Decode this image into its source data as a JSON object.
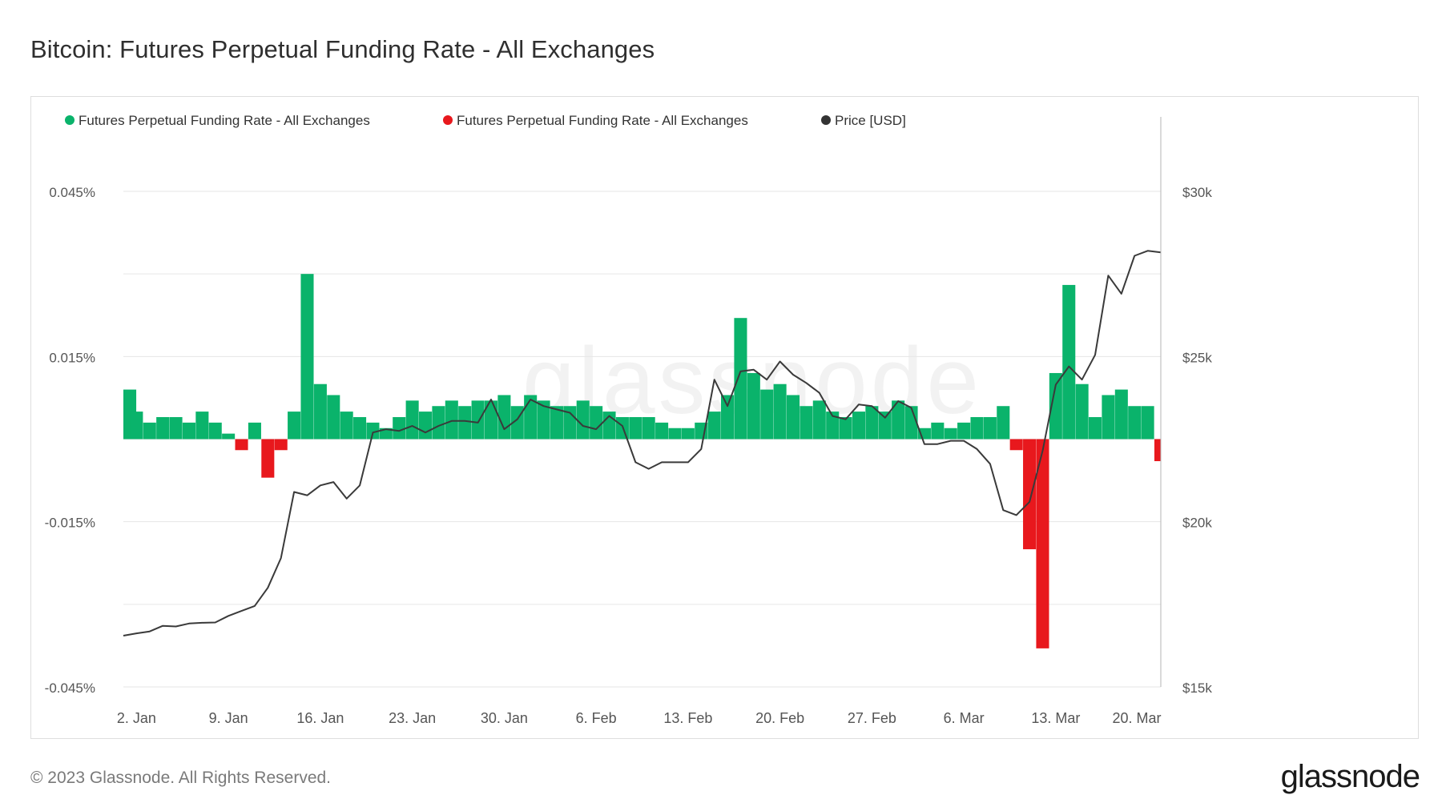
{
  "title": "Bitcoin: Futures Perpetual Funding Rate - All Exchanges",
  "footer": "© 2023 Glassnode. All Rights Reserved.",
  "brand": "glassnode",
  "watermark": "glassnode",
  "colors": {
    "positive": "#0ab36b",
    "negative": "#e8181d",
    "price": "#3a3a3a",
    "grid": "#e6e6e6",
    "axis_text": "#555555"
  },
  "chart_data": {
    "type": "bar",
    "legend_placement": "top-left",
    "grid": true,
    "legend": [
      {
        "name": "Futures Perpetual Funding Rate - All Exchanges",
        "color": "#0ab36b"
      },
      {
        "name": "Futures Perpetual Funding Rate - All Exchanges",
        "color": "#e8181d"
      },
      {
        "name": "Price [USD]",
        "color": "#333333"
      }
    ],
    "x_range": [
      "2023-01-01",
      "2023-03-21"
    ],
    "x_ticks": [
      {
        "date": "2023-01-02",
        "label": "2. Jan"
      },
      {
        "date": "2023-01-09",
        "label": "9. Jan"
      },
      {
        "date": "2023-01-16",
        "label": "16. Jan"
      },
      {
        "date": "2023-01-23",
        "label": "23. Jan"
      },
      {
        "date": "2023-01-30",
        "label": "30. Jan"
      },
      {
        "date": "2023-02-06",
        "label": "6. Feb"
      },
      {
        "date": "2023-02-13",
        "label": "13. Feb"
      },
      {
        "date": "2023-02-20",
        "label": "20. Feb"
      },
      {
        "date": "2023-02-27",
        "label": "27. Feb"
      },
      {
        "date": "2023-03-06",
        "label": "6. Mar"
      },
      {
        "date": "2023-03-13",
        "label": "13. Mar"
      },
      {
        "date": "2023-03-20",
        "label": "20. Mar"
      }
    ],
    "y_left": {
      "ticks": [
        0.045,
        0.015,
        -0.015,
        -0.045
      ],
      "labels": [
        "0.045%",
        "0.015%",
        "-0.015%",
        "-0.045%"
      ],
      "range": [
        -0.045,
        0.045
      ]
    },
    "y_right": {
      "ticks": [
        30000,
        25000,
        20000,
        15000
      ],
      "labels": [
        "$30k",
        "$25k",
        "$20k",
        "$15k"
      ],
      "range": [
        15000,
        30000
      ]
    },
    "funding_rate_series": {
      "name": "Futures Perpetual Funding Rate - All Exchanges",
      "unit": "%",
      "points": [
        [
          "2023-01-01",
          0.009
        ],
        [
          "2023-01-02",
          0.005
        ],
        [
          "2023-01-03",
          0.003
        ],
        [
          "2023-01-04",
          0.004
        ],
        [
          "2023-01-05",
          0.004
        ],
        [
          "2023-01-06",
          0.003
        ],
        [
          "2023-01-07",
          0.005
        ],
        [
          "2023-01-08",
          0.003
        ],
        [
          "2023-01-09",
          0.001
        ],
        [
          "2023-01-10",
          -0.002
        ],
        [
          "2023-01-11",
          0.003
        ],
        [
          "2023-01-12",
          -0.007
        ],
        [
          "2023-01-13",
          -0.002
        ],
        [
          "2023-01-14",
          0.005
        ],
        [
          "2023-01-15",
          0.03
        ],
        [
          "2023-01-16",
          0.01
        ],
        [
          "2023-01-17",
          0.008
        ],
        [
          "2023-01-18",
          0.005
        ],
        [
          "2023-01-19",
          0.004
        ],
        [
          "2023-01-20",
          0.003
        ],
        [
          "2023-01-21",
          0.002
        ],
        [
          "2023-01-22",
          0.004
        ],
        [
          "2023-01-23",
          0.007
        ],
        [
          "2023-01-24",
          0.005
        ],
        [
          "2023-01-25",
          0.006
        ],
        [
          "2023-01-26",
          0.007
        ],
        [
          "2023-01-27",
          0.006
        ],
        [
          "2023-01-28",
          0.007
        ],
        [
          "2023-01-29",
          0.007
        ],
        [
          "2023-01-30",
          0.008
        ],
        [
          "2023-01-31",
          0.006
        ],
        [
          "2023-02-01",
          0.008
        ],
        [
          "2023-02-02",
          0.007
        ],
        [
          "2023-02-03",
          0.006
        ],
        [
          "2023-02-04",
          0.006
        ],
        [
          "2023-02-05",
          0.007
        ],
        [
          "2023-02-06",
          0.006
        ],
        [
          "2023-02-07",
          0.005
        ],
        [
          "2023-02-08",
          0.004
        ],
        [
          "2023-02-09",
          0.004
        ],
        [
          "2023-02-10",
          0.004
        ],
        [
          "2023-02-11",
          0.003
        ],
        [
          "2023-02-12",
          0.002
        ],
        [
          "2023-02-13",
          0.002
        ],
        [
          "2023-02-14",
          0.003
        ],
        [
          "2023-02-15",
          0.005
        ],
        [
          "2023-02-16",
          0.008
        ],
        [
          "2023-02-17",
          0.022
        ],
        [
          "2023-02-18",
          0.012
        ],
        [
          "2023-02-19",
          0.009
        ],
        [
          "2023-02-20",
          0.01
        ],
        [
          "2023-02-21",
          0.008
        ],
        [
          "2023-02-22",
          0.006
        ],
        [
          "2023-02-23",
          0.007
        ],
        [
          "2023-02-24",
          0.005
        ],
        [
          "2023-02-25",
          0.004
        ],
        [
          "2023-02-26",
          0.005
        ],
        [
          "2023-02-27",
          0.006
        ],
        [
          "2023-02-28",
          0.005
        ],
        [
          "2023-03-01",
          0.007
        ],
        [
          "2023-03-02",
          0.006
        ],
        [
          "2023-03-03",
          0.002
        ],
        [
          "2023-03-04",
          0.003
        ],
        [
          "2023-03-05",
          0.002
        ],
        [
          "2023-03-06",
          0.003
        ],
        [
          "2023-03-07",
          0.004
        ],
        [
          "2023-03-08",
          0.004
        ],
        [
          "2023-03-09",
          0.006
        ],
        [
          "2023-03-10",
          -0.002
        ],
        [
          "2023-03-11",
          -0.02
        ],
        [
          "2023-03-12",
          -0.038
        ],
        [
          "2023-03-13",
          0.012
        ],
        [
          "2023-03-14",
          0.028
        ],
        [
          "2023-03-15",
          0.01
        ],
        [
          "2023-03-16",
          0.004
        ],
        [
          "2023-03-17",
          0.008
        ],
        [
          "2023-03-18",
          0.009
        ],
        [
          "2023-03-19",
          0.006
        ],
        [
          "2023-03-20",
          0.006
        ],
        [
          "2023-03-21",
          -0.004
        ]
      ]
    },
    "price_series": {
      "name": "Price [USD]",
      "unit": "USD",
      "points": [
        [
          "2023-01-01",
          16550
        ],
        [
          "2023-01-02",
          16620
        ],
        [
          "2023-01-03",
          16680
        ],
        [
          "2023-01-04",
          16850
        ],
        [
          "2023-01-05",
          16830
        ],
        [
          "2023-01-06",
          16920
        ],
        [
          "2023-01-07",
          16940
        ],
        [
          "2023-01-08",
          16950
        ],
        [
          "2023-01-09",
          17150
        ],
        [
          "2023-01-10",
          17300
        ],
        [
          "2023-01-11",
          17450
        ],
        [
          "2023-01-12",
          18000
        ],
        [
          "2023-01-13",
          18900
        ],
        [
          "2023-01-14",
          20900
        ],
        [
          "2023-01-15",
          20800
        ],
        [
          "2023-01-16",
          21100
        ],
        [
          "2023-01-17",
          21200
        ],
        [
          "2023-01-18",
          20700
        ],
        [
          "2023-01-19",
          21100
        ],
        [
          "2023-01-20",
          22700
        ],
        [
          "2023-01-21",
          22800
        ],
        [
          "2023-01-22",
          22750
        ],
        [
          "2023-01-23",
          22900
        ],
        [
          "2023-01-24",
          22700
        ],
        [
          "2023-01-25",
          22900
        ],
        [
          "2023-01-26",
          23050
        ],
        [
          "2023-01-27",
          23050
        ],
        [
          "2023-01-28",
          23000
        ],
        [
          "2023-01-29",
          23700
        ],
        [
          "2023-01-30",
          22800
        ],
        [
          "2023-01-31",
          23100
        ],
        [
          "2023-02-01",
          23700
        ],
        [
          "2023-02-02",
          23500
        ],
        [
          "2023-02-03",
          23400
        ],
        [
          "2023-02-04",
          23300
        ],
        [
          "2023-02-05",
          22900
        ],
        [
          "2023-02-06",
          22800
        ],
        [
          "2023-02-07",
          23200
        ],
        [
          "2023-02-08",
          22900
        ],
        [
          "2023-02-09",
          21800
        ],
        [
          "2023-02-10",
          21600
        ],
        [
          "2023-02-11",
          21800
        ],
        [
          "2023-02-12",
          21800
        ],
        [
          "2023-02-13",
          21800
        ],
        [
          "2023-02-14",
          22200
        ],
        [
          "2023-02-15",
          24300
        ],
        [
          "2023-02-16",
          23500
        ],
        [
          "2023-02-17",
          24550
        ],
        [
          "2023-02-18",
          24600
        ],
        [
          "2023-02-19",
          24300
        ],
        [
          "2023-02-20",
          24850
        ],
        [
          "2023-02-21",
          24450
        ],
        [
          "2023-02-22",
          24200
        ],
        [
          "2023-02-23",
          23900
        ],
        [
          "2023-02-24",
          23200
        ],
        [
          "2023-02-25",
          23100
        ],
        [
          "2023-02-26",
          23550
        ],
        [
          "2023-02-27",
          23500
        ],
        [
          "2023-02-28",
          23150
        ],
        [
          "2023-03-01",
          23650
        ],
        [
          "2023-03-02",
          23450
        ],
        [
          "2023-03-03",
          22350
        ],
        [
          "2023-03-04",
          22350
        ],
        [
          "2023-03-05",
          22450
        ],
        [
          "2023-03-06",
          22450
        ],
        [
          "2023-03-07",
          22200
        ],
        [
          "2023-03-08",
          21750
        ],
        [
          "2023-03-09",
          20350
        ],
        [
          "2023-03-10",
          20200
        ],
        [
          "2023-03-11",
          20600
        ],
        [
          "2023-03-12",
          22150
        ],
        [
          "2023-03-13",
          24150
        ],
        [
          "2023-03-14",
          24700
        ],
        [
          "2023-03-15",
          24300
        ],
        [
          "2023-03-16",
          25050
        ],
        [
          "2023-03-17",
          27450
        ],
        [
          "2023-03-18",
          26900
        ],
        [
          "2023-03-19",
          28050
        ],
        [
          "2023-03-20",
          28200
        ],
        [
          "2023-03-21",
          28150
        ]
      ]
    }
  }
}
